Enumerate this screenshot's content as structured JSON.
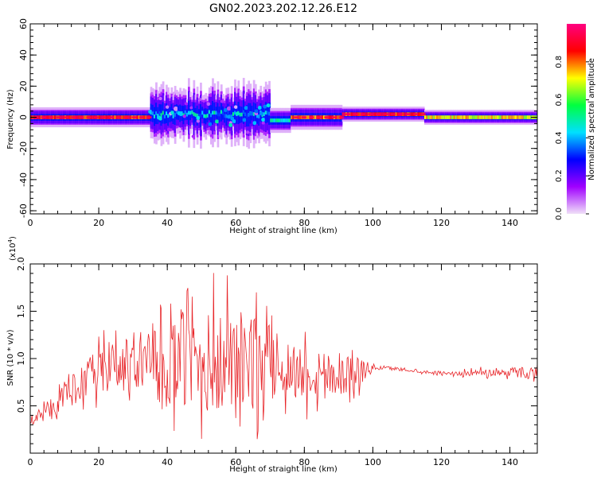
{
  "title": "GN02.2023.202.12.26.E12",
  "colors": {
    "snr_line": "#e8262a",
    "axes": "#000000"
  },
  "chart_data": [
    {
      "type": "heatmap",
      "title": "",
      "xlabel": "Height of straight line (km)",
      "ylabel": "Frequency (Hz)",
      "xlim": [
        0,
        148
      ],
      "ylim": [
        -62,
        60
      ],
      "xticks": [
        0,
        20,
        40,
        60,
        80,
        100,
        120,
        140
      ],
      "yticks": [
        -60,
        -40,
        -20,
        0,
        20,
        40,
        60
      ],
      "colorbar": {
        "label": "Normalized spectral amplitude",
        "range": [
          0,
          1
        ],
        "ticks": [
          "0.0",
          "0.2",
          "0.4",
          "0.6",
          "0.8"
        ],
        "colormap": [
          "#f0e0f8",
          "#a000ff",
          "#0000ff",
          "#00e0ff",
          "#00ff40",
          "#ffff00",
          "#ff0000",
          "#ff0080"
        ]
      },
      "band_segments": [
        {
          "x_start": 0,
          "x_end": 35,
          "center_hz": 0,
          "halfwidth_hz": 4,
          "peak": 0.9
        },
        {
          "x_start": 35,
          "x_end": 70,
          "center_hz": 2,
          "halfwidth_hz": 10,
          "peak": 0.45
        },
        {
          "x_start": 70,
          "x_end": 76,
          "center_hz": -2,
          "halfwidth_hz": 5,
          "peak": 0.5
        },
        {
          "x_start": 76,
          "x_end": 91,
          "center_hz": 0,
          "halfwidth_hz": 5,
          "peak": 0.85
        },
        {
          "x_start": 91,
          "x_end": 115,
          "center_hz": 2,
          "halfwidth_hz": 3,
          "peak": 0.9
        },
        {
          "x_start": 115,
          "x_end": 148,
          "center_hz": 0,
          "halfwidth_hz": 3,
          "peak": 0.75
        }
      ]
    },
    {
      "type": "line",
      "title": "",
      "xlabel": "Height of straight line (km)",
      "ylabel": "SNR (10 * v/v)",
      "y_multiplier": "(x10",
      "y_multiplier_exp": "4",
      "y_multiplier_close": ")",
      "xlim": [
        0,
        148
      ],
      "ylim": [
        0,
        2.0
      ],
      "xticks": [
        0,
        20,
        40,
        60,
        80,
        100,
        120,
        140
      ],
      "yticks": [
        "0.5",
        "1.0",
        "1.5",
        "2.0"
      ],
      "envelope": {
        "x": [
          0,
          5,
          10,
          15,
          20,
          25,
          30,
          35,
          40,
          45,
          50,
          55,
          60,
          65,
          70,
          75,
          80,
          85,
          90,
          95,
          100,
          105,
          110,
          115,
          120,
          125,
          130,
          135,
          140,
          145,
          148
        ],
        "mean": [
          0.35,
          0.45,
          0.6,
          0.75,
          0.85,
          0.9,
          0.95,
          0.95,
          0.95,
          0.95,
          0.95,
          0.95,
          0.95,
          0.95,
          0.95,
          0.9,
          0.85,
          0.85,
          0.85,
          0.85,
          0.9,
          0.9,
          0.88,
          0.86,
          0.85,
          0.84,
          0.85,
          0.85,
          0.86,
          0.85,
          0.85
        ],
        "amp": [
          0.1,
          0.15,
          0.25,
          0.35,
          0.45,
          0.5,
          0.55,
          0.6,
          0.75,
          0.9,
          1.0,
          1.0,
          1.0,
          0.95,
          0.75,
          0.55,
          0.55,
          0.5,
          0.45,
          0.35,
          0.05,
          0.03,
          0.03,
          0.03,
          0.03,
          0.04,
          0.06,
          0.07,
          0.09,
          0.12,
          0.12
        ]
      }
    }
  ]
}
